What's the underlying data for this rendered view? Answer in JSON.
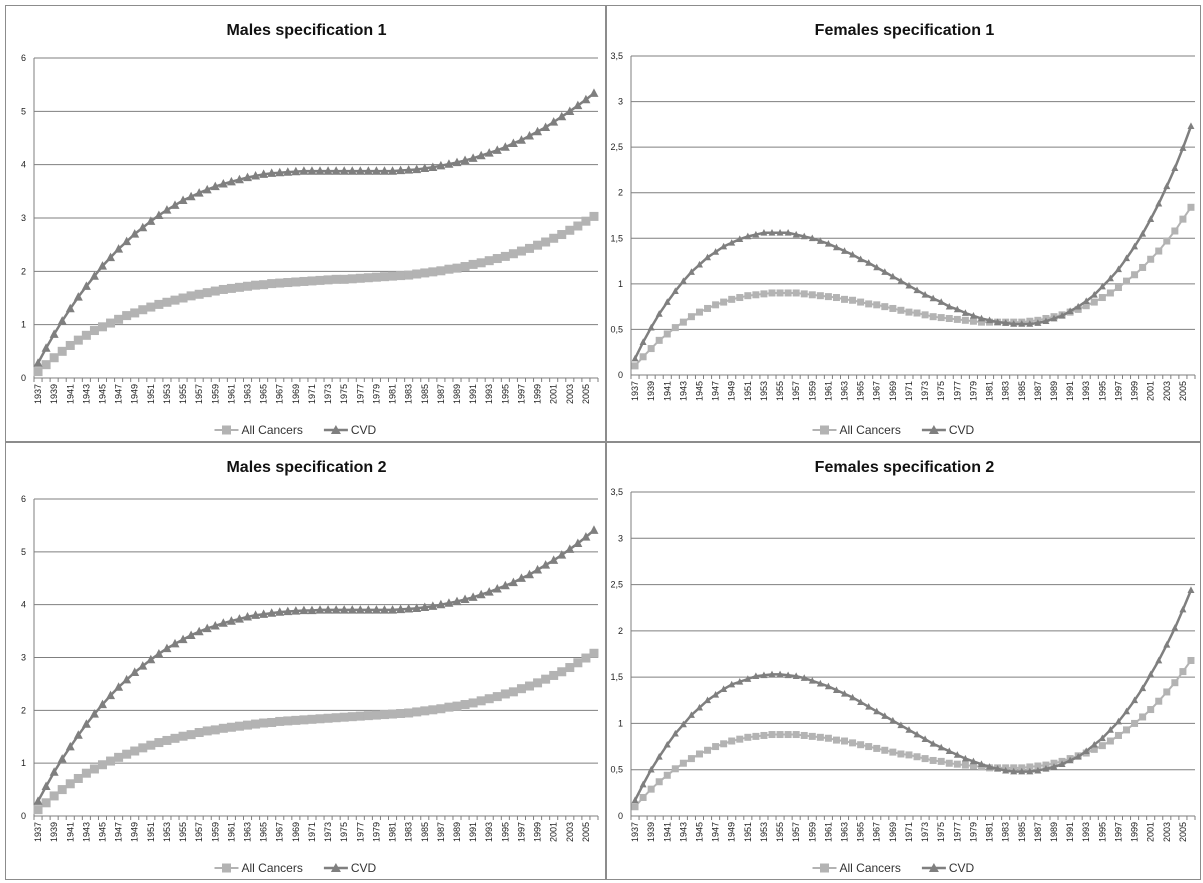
{
  "chart_data": [
    {
      "type": "line",
      "title": "Males specification 1",
      "x": [
        1937,
        1938,
        1939,
        1940,
        1941,
        1942,
        1943,
        1944,
        1945,
        1946,
        1947,
        1948,
        1949,
        1950,
        1951,
        1952,
        1953,
        1954,
        1955,
        1956,
        1957,
        1958,
        1959,
        1960,
        1961,
        1962,
        1963,
        1964,
        1965,
        1966,
        1967,
        1968,
        1969,
        1970,
        1971,
        1972,
        1973,
        1974,
        1975,
        1976,
        1977,
        1978,
        1979,
        1980,
        1981,
        1982,
        1983,
        1984,
        1985,
        1986,
        1987,
        1988,
        1989,
        1990,
        1991,
        1992,
        1993,
        1994,
        1995,
        1996,
        1997,
        1998,
        1999,
        2000,
        2001,
        2002,
        2003,
        2004,
        2005,
        2006
      ],
      "x_ticks": [
        "1937",
        "1939",
        "1941",
        "1943",
        "1945",
        "1947",
        "1949",
        "1951",
        "1953",
        "1955",
        "1957",
        "1959",
        "1961",
        "1963",
        "1965",
        "1967",
        "1969",
        "1971",
        "1973",
        "1975",
        "1977",
        "1979",
        "1981",
        "1983",
        "1985",
        "1987",
        "1989",
        "1991",
        "1993",
        "1995",
        "1997",
        "1999",
        "2001",
        "2003",
        "2005"
      ],
      "ylim": [
        0,
        6
      ],
      "y_ticks": [
        "0",
        "1",
        "2",
        "3",
        "4",
        "5",
        "6"
      ],
      "grid": true,
      "legend": "bottom",
      "series": [
        {
          "name": "All Cancers",
          "color": "#b3b3b3",
          "marker": "square",
          "line_width": 2,
          "values": [
            0.12,
            0.25,
            0.38,
            0.5,
            0.61,
            0.71,
            0.8,
            0.89,
            0.96,
            1.03,
            1.1,
            1.17,
            1.22,
            1.28,
            1.33,
            1.38,
            1.42,
            1.46,
            1.5,
            1.54,
            1.57,
            1.6,
            1.63,
            1.66,
            1.68,
            1.7,
            1.72,
            1.74,
            1.75,
            1.77,
            1.78,
            1.79,
            1.8,
            1.81,
            1.82,
            1.83,
            1.84,
            1.85,
            1.85,
            1.86,
            1.87,
            1.88,
            1.89,
            1.9,
            1.91,
            1.92,
            1.93,
            1.95,
            1.97,
            1.99,
            2.01,
            2.04,
            2.06,
            2.09,
            2.13,
            2.16,
            2.2,
            2.24,
            2.28,
            2.33,
            2.38,
            2.43,
            2.49,
            2.55,
            2.62,
            2.69,
            2.77,
            2.85,
            2.94,
            3.03
          ]
        },
        {
          "name": "CVD",
          "color": "#7f7f7f",
          "marker": "triangle",
          "line_width": 2.5,
          "values": [
            0.28,
            0.56,
            0.82,
            1.07,
            1.3,
            1.52,
            1.72,
            1.91,
            2.1,
            2.26,
            2.42,
            2.56,
            2.7,
            2.82,
            2.94,
            3.05,
            3.15,
            3.24,
            3.33,
            3.4,
            3.47,
            3.53,
            3.59,
            3.64,
            3.68,
            3.72,
            3.76,
            3.79,
            3.82,
            3.84,
            3.85,
            3.86,
            3.87,
            3.88,
            3.88,
            3.88,
            3.88,
            3.88,
            3.88,
            3.88,
            3.88,
            3.88,
            3.88,
            3.88,
            3.88,
            3.89,
            3.9,
            3.91,
            3.93,
            3.95,
            3.98,
            4.01,
            4.04,
            4.08,
            4.12,
            4.17,
            4.22,
            4.27,
            4.33,
            4.4,
            4.46,
            4.54,
            4.62,
            4.7,
            4.8,
            4.9,
            5.0,
            5.11,
            5.22,
            5.34
          ]
        }
      ]
    },
    {
      "type": "line",
      "title": "Females specification 1",
      "x": [
        1937,
        1938,
        1939,
        1940,
        1941,
        1942,
        1943,
        1944,
        1945,
        1946,
        1947,
        1948,
        1949,
        1950,
        1951,
        1952,
        1953,
        1954,
        1955,
        1956,
        1957,
        1958,
        1959,
        1960,
        1961,
        1962,
        1963,
        1964,
        1965,
        1966,
        1967,
        1968,
        1969,
        1970,
        1971,
        1972,
        1973,
        1974,
        1975,
        1976,
        1977,
        1978,
        1979,
        1980,
        1981,
        1982,
        1983,
        1984,
        1985,
        1986,
        1987,
        1988,
        1989,
        1990,
        1991,
        1992,
        1993,
        1994,
        1995,
        1996,
        1997,
        1998,
        1999,
        2000,
        2001,
        2002,
        2003,
        2004,
        2005,
        2006
      ],
      "x_ticks": [
        "1937",
        "1939",
        "1941",
        "1943",
        "1945",
        "1947",
        "1949",
        "1951",
        "1953",
        "1955",
        "1957",
        "1959",
        "1961",
        "1963",
        "1965",
        "1967",
        "1969",
        "1971",
        "1973",
        "1975",
        "1977",
        "1979",
        "1981",
        "1983",
        "1985",
        "1987",
        "1989",
        "1991",
        "1993",
        "1995",
        "1997",
        "1999",
        "2001",
        "2003",
        "2005"
      ],
      "ylim": [
        0,
        3.5
      ],
      "y_ticks": [
        "0",
        "0,5",
        "1",
        "1,5",
        "2",
        "2,5",
        "3",
        "3,5"
      ],
      "grid": true,
      "legend": "bottom",
      "series": [
        {
          "name": "All Cancers",
          "color": "#b3b3b3",
          "marker": "square",
          "line_width": 2,
          "values": [
            0.1,
            0.2,
            0.29,
            0.38,
            0.45,
            0.52,
            0.58,
            0.64,
            0.69,
            0.73,
            0.77,
            0.8,
            0.83,
            0.85,
            0.87,
            0.88,
            0.89,
            0.9,
            0.9,
            0.9,
            0.9,
            0.89,
            0.88,
            0.87,
            0.86,
            0.85,
            0.83,
            0.82,
            0.8,
            0.78,
            0.77,
            0.75,
            0.73,
            0.71,
            0.69,
            0.68,
            0.66,
            0.64,
            0.63,
            0.62,
            0.61,
            0.6,
            0.59,
            0.58,
            0.58,
            0.58,
            0.58,
            0.58,
            0.58,
            0.59,
            0.6,
            0.62,
            0.64,
            0.66,
            0.69,
            0.72,
            0.76,
            0.8,
            0.85,
            0.9,
            0.96,
            1.03,
            1.1,
            1.18,
            1.27,
            1.36,
            1.47,
            1.58,
            1.71,
            1.84
          ]
        },
        {
          "name": "CVD",
          "color": "#7f7f7f",
          "marker": "triangle",
          "line_width": 2.5,
          "values": [
            0.18,
            0.36,
            0.52,
            0.67,
            0.8,
            0.92,
            1.03,
            1.13,
            1.21,
            1.29,
            1.35,
            1.41,
            1.45,
            1.49,
            1.52,
            1.54,
            1.56,
            1.56,
            1.56,
            1.56,
            1.54,
            1.52,
            1.5,
            1.47,
            1.44,
            1.4,
            1.36,
            1.32,
            1.27,
            1.23,
            1.18,
            1.13,
            1.08,
            1.03,
            0.98,
            0.93,
            0.88,
            0.84,
            0.8,
            0.75,
            0.72,
            0.68,
            0.65,
            0.62,
            0.6,
            0.58,
            0.57,
            0.56,
            0.56,
            0.56,
            0.57,
            0.59,
            0.62,
            0.65,
            0.7,
            0.75,
            0.81,
            0.88,
            0.97,
            1.06,
            1.16,
            1.28,
            1.41,
            1.55,
            1.71,
            1.88,
            2.07,
            2.27,
            2.49,
            2.73
          ]
        }
      ]
    },
    {
      "type": "line",
      "title": "Males specification 2",
      "x": [
        1937,
        1938,
        1939,
        1940,
        1941,
        1942,
        1943,
        1944,
        1945,
        1946,
        1947,
        1948,
        1949,
        1950,
        1951,
        1952,
        1953,
        1954,
        1955,
        1956,
        1957,
        1958,
        1959,
        1960,
        1961,
        1962,
        1963,
        1964,
        1965,
        1966,
        1967,
        1968,
        1969,
        1970,
        1971,
        1972,
        1973,
        1974,
        1975,
        1976,
        1977,
        1978,
        1979,
        1980,
        1981,
        1982,
        1983,
        1984,
        1985,
        1986,
        1987,
        1988,
        1989,
        1990,
        1991,
        1992,
        1993,
        1994,
        1995,
        1996,
        1997,
        1998,
        1999,
        2000,
        2001,
        2002,
        2003,
        2004,
        2005,
        2006
      ],
      "x_ticks": [
        "1937",
        "1939",
        "1941",
        "1943",
        "1945",
        "1947",
        "1949",
        "1951",
        "1953",
        "1955",
        "1957",
        "1959",
        "1961",
        "1963",
        "1965",
        "1967",
        "1969",
        "1971",
        "1973",
        "1975",
        "1977",
        "1979",
        "1981",
        "1983",
        "1985",
        "1987",
        "1989",
        "1991",
        "1993",
        "1995",
        "1997",
        "1999",
        "2001",
        "2003",
        "2005"
      ],
      "ylim": [
        0,
        6
      ],
      "y_ticks": [
        "0",
        "1",
        "2",
        "3",
        "4",
        "5",
        "6"
      ],
      "grid": true,
      "legend": "bottom",
      "series": [
        {
          "name": "All Cancers",
          "color": "#b3b3b3",
          "marker": "square",
          "line_width": 2,
          "values": [
            0.12,
            0.25,
            0.38,
            0.5,
            0.61,
            0.71,
            0.81,
            0.89,
            0.97,
            1.04,
            1.11,
            1.17,
            1.23,
            1.29,
            1.34,
            1.39,
            1.43,
            1.47,
            1.51,
            1.54,
            1.58,
            1.61,
            1.63,
            1.66,
            1.68,
            1.7,
            1.72,
            1.74,
            1.76,
            1.77,
            1.79,
            1.8,
            1.81,
            1.82,
            1.83,
            1.84,
            1.85,
            1.86,
            1.87,
            1.88,
            1.89,
            1.9,
            1.91,
            1.92,
            1.93,
            1.94,
            1.95,
            1.97,
            1.99,
            2.01,
            2.03,
            2.06,
            2.08,
            2.11,
            2.14,
            2.18,
            2.22,
            2.26,
            2.31,
            2.35,
            2.41,
            2.46,
            2.52,
            2.59,
            2.66,
            2.73,
            2.81,
            2.9,
            2.99,
            3.08
          ]
        },
        {
          "name": "CVD",
          "color": "#7f7f7f",
          "marker": "triangle",
          "line_width": 2.5,
          "values": [
            0.28,
            0.56,
            0.83,
            1.08,
            1.31,
            1.53,
            1.74,
            1.93,
            2.11,
            2.28,
            2.44,
            2.58,
            2.72,
            2.84,
            2.96,
            3.07,
            3.17,
            3.26,
            3.34,
            3.42,
            3.49,
            3.55,
            3.6,
            3.65,
            3.69,
            3.73,
            3.77,
            3.8,
            3.82,
            3.84,
            3.86,
            3.87,
            3.88,
            3.89,
            3.89,
            3.9,
            3.9,
            3.9,
            3.9,
            3.9,
            3.9,
            3.9,
            3.9,
            3.9,
            3.9,
            3.91,
            3.92,
            3.93,
            3.95,
            3.97,
            4.0,
            4.03,
            4.06,
            4.1,
            4.14,
            4.19,
            4.24,
            4.3,
            4.36,
            4.42,
            4.5,
            4.57,
            4.66,
            4.75,
            4.84,
            4.94,
            5.05,
            5.16,
            5.28,
            5.41
          ]
        }
      ]
    },
    {
      "type": "line",
      "title": "Females specification 2",
      "x": [
        1937,
        1938,
        1939,
        1940,
        1941,
        1942,
        1943,
        1944,
        1945,
        1946,
        1947,
        1948,
        1949,
        1950,
        1951,
        1952,
        1953,
        1954,
        1955,
        1956,
        1957,
        1958,
        1959,
        1960,
        1961,
        1962,
        1963,
        1964,
        1965,
        1966,
        1967,
        1968,
        1969,
        1970,
        1971,
        1972,
        1973,
        1974,
        1975,
        1976,
        1977,
        1978,
        1979,
        1980,
        1981,
        1982,
        1983,
        1984,
        1985,
        1986,
        1987,
        1988,
        1989,
        1990,
        1991,
        1992,
        1993,
        1994,
        1995,
        1996,
        1997,
        1998,
        1999,
        2000,
        2001,
        2002,
        2003,
        2004,
        2005,
        2006
      ],
      "x_ticks": [
        "1937",
        "1939",
        "1941",
        "1943",
        "1945",
        "1947",
        "1949",
        "1951",
        "1953",
        "1955",
        "1957",
        "1959",
        "1961",
        "1963",
        "1965",
        "1967",
        "1969",
        "1971",
        "1973",
        "1975",
        "1977",
        "1979",
        "1981",
        "1983",
        "1985",
        "1987",
        "1989",
        "1991",
        "1993",
        "1995",
        "1997",
        "1999",
        "2001",
        "2003",
        "2005"
      ],
      "ylim": [
        0,
        3.5
      ],
      "y_ticks": [
        "0",
        "0,5",
        "1",
        "1,5",
        "2",
        "2,5",
        "3",
        "3,5"
      ],
      "grid": true,
      "legend": "bottom",
      "series": [
        {
          "name": "All Cancers",
          "color": "#b3b3b3",
          "marker": "square",
          "line_width": 2,
          "values": [
            0.1,
            0.2,
            0.29,
            0.37,
            0.44,
            0.51,
            0.57,
            0.62,
            0.67,
            0.71,
            0.75,
            0.78,
            0.81,
            0.83,
            0.85,
            0.86,
            0.87,
            0.88,
            0.88,
            0.88,
            0.88,
            0.87,
            0.86,
            0.85,
            0.84,
            0.82,
            0.81,
            0.79,
            0.77,
            0.75,
            0.73,
            0.71,
            0.69,
            0.67,
            0.66,
            0.64,
            0.62,
            0.6,
            0.59,
            0.57,
            0.56,
            0.55,
            0.54,
            0.53,
            0.52,
            0.52,
            0.52,
            0.52,
            0.52,
            0.53,
            0.54,
            0.55,
            0.57,
            0.59,
            0.62,
            0.65,
            0.68,
            0.72,
            0.76,
            0.81,
            0.87,
            0.93,
            1.0,
            1.07,
            1.15,
            1.24,
            1.34,
            1.44,
            1.56,
            1.68
          ]
        },
        {
          "name": "CVD",
          "color": "#7f7f7f",
          "marker": "triangle",
          "line_width": 2.5,
          "values": [
            0.17,
            0.34,
            0.5,
            0.64,
            0.77,
            0.89,
            0.99,
            1.09,
            1.17,
            1.25,
            1.31,
            1.37,
            1.42,
            1.45,
            1.48,
            1.51,
            1.52,
            1.53,
            1.53,
            1.52,
            1.51,
            1.49,
            1.46,
            1.43,
            1.4,
            1.36,
            1.32,
            1.28,
            1.23,
            1.18,
            1.13,
            1.08,
            1.03,
            0.98,
            0.93,
            0.88,
            0.83,
            0.78,
            0.74,
            0.7,
            0.66,
            0.62,
            0.59,
            0.56,
            0.53,
            0.51,
            0.49,
            0.48,
            0.48,
            0.48,
            0.49,
            0.51,
            0.53,
            0.56,
            0.6,
            0.64,
            0.7,
            0.77,
            0.84,
            0.93,
            1.02,
            1.13,
            1.25,
            1.38,
            1.53,
            1.68,
            1.85,
            2.03,
            2.23,
            2.44
          ]
        }
      ]
    }
  ]
}
